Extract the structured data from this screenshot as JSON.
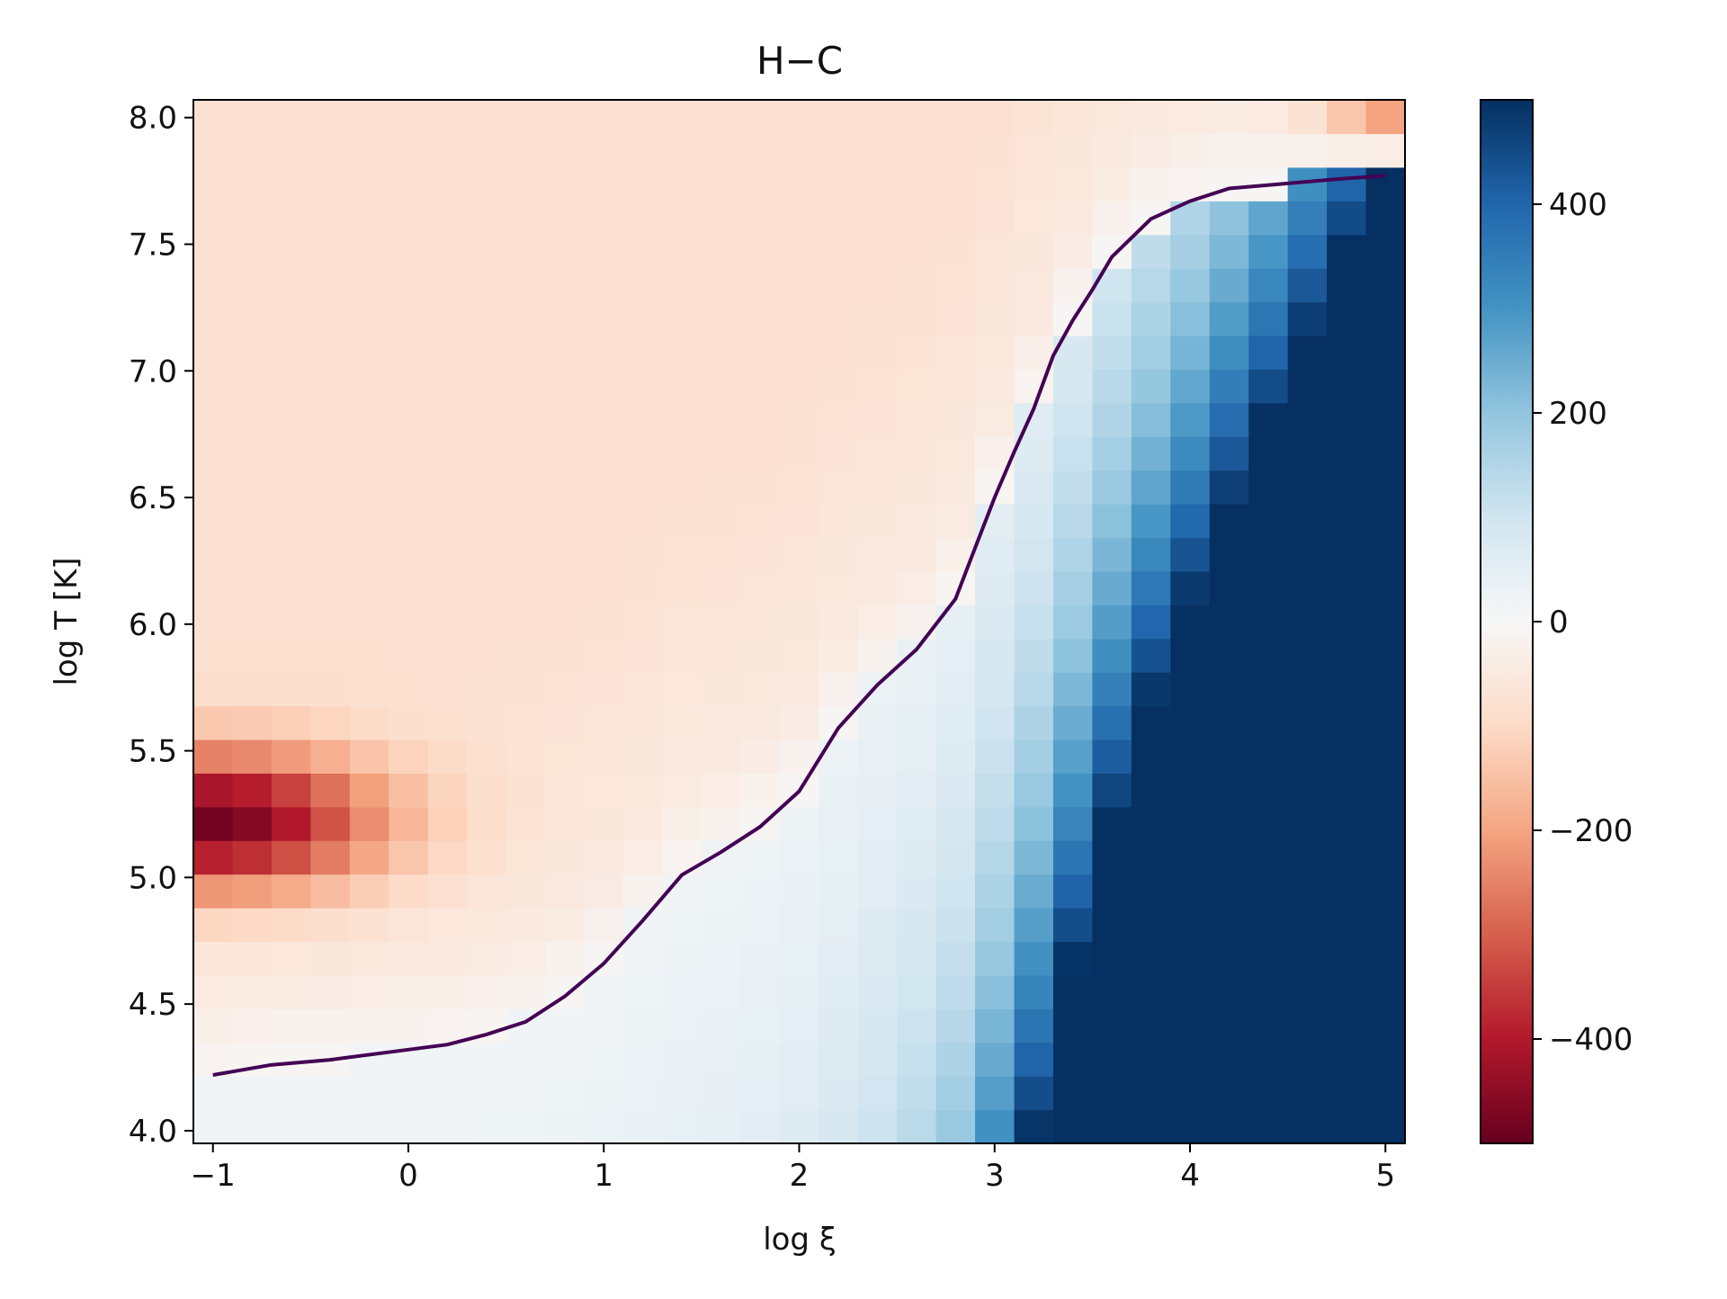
{
  "chart_data": {
    "type": "heatmap",
    "title": "H−C",
    "xlabel": "log ξ",
    "ylabel": "log T [K]",
    "xlim": [
      -1.1,
      5.1
    ],
    "ylim": [
      3.95,
      8.07
    ],
    "x_ticks": [
      {
        "value": -1,
        "label": "−1"
      },
      {
        "value": 0,
        "label": "0"
      },
      {
        "value": 1,
        "label": "1"
      },
      {
        "value": 2,
        "label": "2"
      },
      {
        "value": 3,
        "label": "3"
      },
      {
        "value": 4,
        "label": "4"
      },
      {
        "value": 5,
        "label": "5"
      }
    ],
    "y_ticks": [
      {
        "value": 4.0,
        "label": "4.0"
      },
      {
        "value": 4.5,
        "label": "4.5"
      },
      {
        "value": 5.0,
        "label": "5.0"
      },
      {
        "value": 5.5,
        "label": "5.5"
      },
      {
        "value": 6.0,
        "label": "6.0"
      },
      {
        "value": 6.5,
        "label": "6.5"
      },
      {
        "value": 7.0,
        "label": "7.0"
      },
      {
        "value": 7.5,
        "label": "7.5"
      },
      {
        "value": 8.0,
        "label": "8.0"
      }
    ],
    "colorbar": {
      "colormap": "RdBu",
      "range": [
        -500,
        500
      ],
      "ticks": [
        {
          "value": 400,
          "label": "400"
        },
        {
          "value": 200,
          "label": "200"
        },
        {
          "value": 0,
          "label": "0"
        },
        {
          "value": -200,
          "label": "−200"
        },
        {
          "value": -400,
          "label": "−400"
        }
      ]
    },
    "grid": {
      "x_range": [
        -1.1,
        5.1
      ],
      "y_range": [
        3.95,
        8.07
      ],
      "n_x": 31,
      "n_y": 31
    },
    "equilibrium_curve": {
      "color": "#440154",
      "x": [
        -1.0,
        -0.7,
        -0.4,
        0.0,
        0.2,
        0.4,
        0.6,
        0.8,
        1.0,
        1.2,
        1.4,
        1.6,
        1.8,
        2.0,
        2.2,
        2.4,
        2.6,
        2.8,
        2.9,
        3.0,
        3.1,
        3.2,
        3.3,
        3.4,
        3.5,
        3.6,
        3.8,
        4.0,
        4.2,
        4.5,
        4.8,
        5.0
      ],
      "y": [
        4.22,
        4.26,
        4.28,
        4.32,
        4.34,
        4.38,
        4.43,
        4.53,
        4.66,
        4.83,
        5.01,
        5.1,
        5.2,
        5.34,
        5.59,
        5.76,
        5.9,
        6.1,
        6.3,
        6.5,
        6.68,
        6.85,
        7.06,
        7.2,
        7.32,
        7.45,
        7.6,
        7.67,
        7.72,
        7.74,
        7.76,
        7.77
      ]
    }
  }
}
